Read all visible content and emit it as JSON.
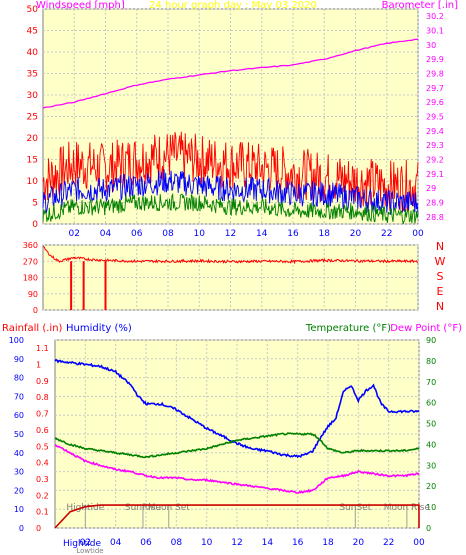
{
  "chart_data": [
    {
      "type": "line",
      "title": "24 hour graph day : May 03 2020",
      "ylabel_left": "Windspeed [mph]",
      "ylabel_right": "Barometer [.in]",
      "x_ticks": [
        "02",
        "04",
        "06",
        "08",
        "10",
        "12",
        "14",
        "16",
        "18",
        "20",
        "22",
        "00"
      ],
      "y_left_ticks": [
        "0",
        "5",
        "10",
        "15",
        "20",
        "25",
        "30",
        "35",
        "40",
        "45",
        "50"
      ],
      "y_right_ticks": [
        "28.8",
        "28.9",
        "29",
        "29.1",
        "29.2",
        "29.3",
        "29.4",
        "29.5",
        "29.6",
        "29.7",
        "29.8",
        "29.9",
        "30",
        "30.1",
        "30.2"
      ],
      "ylim_left": [
        0,
        50
      ],
      "ylim_right": [
        28.75,
        30.25
      ],
      "series": [
        {
          "color": "#ff0000",
          "hours": [
            0,
            2,
            4,
            6,
            8,
            10,
            12,
            14,
            16,
            18,
            20,
            22,
            24
          ],
          "values": [
            10,
            14,
            13,
            15,
            16,
            15,
            14,
            13,
            12,
            11,
            10,
            9,
            9
          ]
        },
        {
          "color": "#0000ff",
          "hours": [
            0,
            2,
            4,
            6,
            8,
            10,
            12,
            14,
            16,
            18,
            20,
            22,
            24
          ],
          "values": [
            5,
            8,
            8,
            9,
            10,
            9,
            8,
            8,
            7,
            7,
            6,
            5,
            5
          ]
        },
        {
          "color": "#008000",
          "hours": [
            0,
            2,
            4,
            6,
            8,
            10,
            12,
            14,
            16,
            18,
            20,
            22,
            24
          ],
          "values": [
            2,
            4,
            4,
            5,
            5,
            5,
            4,
            4,
            3,
            3,
            3,
            2,
            2
          ]
        },
        {
          "color": "#ff00ff",
          "hours": [
            0,
            2,
            4,
            6,
            8,
            10,
            12,
            14,
            16,
            18,
            20,
            22,
            24
          ],
          "values": [
            29.56,
            29.6,
            29.66,
            29.72,
            29.76,
            29.79,
            29.82,
            29.84,
            29.86,
            29.9,
            29.96,
            30.01,
            30.04
          ]
        }
      ]
    },
    {
      "type": "line",
      "ylabel_right": "N W S E N",
      "y_left_ticks": [
        "0",
        "90",
        "180",
        "270",
        "360"
      ],
      "ylim": [
        0,
        360
      ],
      "series": [
        {
          "color": "#ff0000",
          "hours": [
            0,
            0.5,
            1,
            2,
            3,
            4,
            6,
            8,
            10,
            12,
            14,
            16,
            18,
            20,
            22,
            24
          ],
          "values": [
            350,
            300,
            270,
            290,
            280,
            275,
            270,
            270,
            272,
            268,
            270,
            268,
            275,
            272,
            270,
            270
          ]
        }
      ]
    },
    {
      "type": "line",
      "ylabel_left_1": "Rainfall (.in)",
      "ylabel_left_2": "Humidity (%)",
      "ylabel_right_1": "Temperature (°F)",
      "ylabel_right_2": "Dew Point (°F)",
      "x_ticks": [
        "02",
        "04",
        "06",
        "08",
        "10",
        "12",
        "14",
        "16",
        "18",
        "20",
        "22",
        "00"
      ],
      "y_humidity_ticks": [
        "0",
        "10",
        "20",
        "30",
        "40",
        "50",
        "60",
        "70",
        "80",
        "90",
        "100"
      ],
      "y_rain_ticks": [
        "0",
        "0.1",
        "0.2",
        "0.3",
        "0.4",
        "0.5",
        "0.6",
        "0.7",
        "0.8",
        "0.9",
        "1",
        "1.1"
      ],
      "y_temp_ticks": [
        "0",
        "10",
        "20",
        "30",
        "40",
        "50",
        "60",
        "70",
        "80",
        "90"
      ],
      "ylim_humidity": [
        0,
        100
      ],
      "ylim_temp": [
        0,
        90
      ],
      "series": [
        {
          "color": "#0000ff",
          "axis": "humidity",
          "hours": [
            0,
            1,
            2,
            3,
            4,
            5,
            5.5,
            6,
            7,
            8,
            9,
            10,
            11,
            12,
            13,
            14,
            15,
            16,
            16.5,
            17,
            17.5,
            18,
            18.5,
            19,
            19.5,
            20,
            20.5,
            21,
            21.5,
            22,
            23,
            24
          ],
          "values": [
            89,
            88,
            87,
            86,
            83,
            76,
            70,
            66,
            66,
            63,
            58,
            53,
            49,
            45,
            42,
            41,
            39,
            38,
            39,
            41,
            48,
            54,
            58,
            72,
            76,
            68,
            73,
            76,
            66,
            62,
            62,
            62
          ]
        },
        {
          "color": "#008000",
          "axis": "temp",
          "hours": [
            0,
            1,
            2,
            3,
            4,
            5,
            6,
            7,
            8,
            9,
            10,
            11,
            12,
            13,
            14,
            15,
            16,
            17,
            17.5,
            18,
            19,
            20,
            21,
            22,
            23,
            24
          ],
          "values": [
            43,
            40,
            38,
            37,
            36,
            35,
            34,
            35,
            36,
            37,
            38,
            40,
            42,
            43,
            44,
            45,
            45,
            45,
            42,
            38,
            36,
            37,
            37,
            37,
            37,
            38
          ]
        },
        {
          "color": "#ff00ff",
          "axis": "temp",
          "hours": [
            0,
            1,
            2,
            3,
            4,
            5,
            6,
            7,
            8,
            9,
            10,
            11,
            12,
            13,
            14,
            15,
            16,
            17,
            17.5,
            18,
            19,
            20,
            21,
            22,
            23,
            24
          ],
          "values": [
            40,
            36,
            32,
            30,
            28,
            27,
            25,
            24,
            24,
            23,
            23,
            22,
            21,
            20,
            19,
            18,
            17,
            18,
            21,
            24,
            25,
            27,
            26,
            25,
            25,
            26
          ]
        },
        {
          "color": "#cc0000",
          "axis": "rain",
          "hours": [
            0,
            1,
            2,
            3,
            24
          ],
          "values": [
            0,
            0.1,
            0.13,
            0.14,
            0.14
          ]
        }
      ],
      "annotations": [
        {
          "label": "Hightide",
          "hour": 2
        },
        {
          "label": "SunRise",
          "hour": 5.8
        },
        {
          "label": "Moon Set",
          "hour": 7.5
        },
        {
          "label": "SunSet",
          "hour": 19.8
        },
        {
          "label": "Moon Rise",
          "hour": 23.2
        }
      ],
      "bottom_labels": [
        "Hightide",
        "Lowtide"
      ]
    }
  ]
}
